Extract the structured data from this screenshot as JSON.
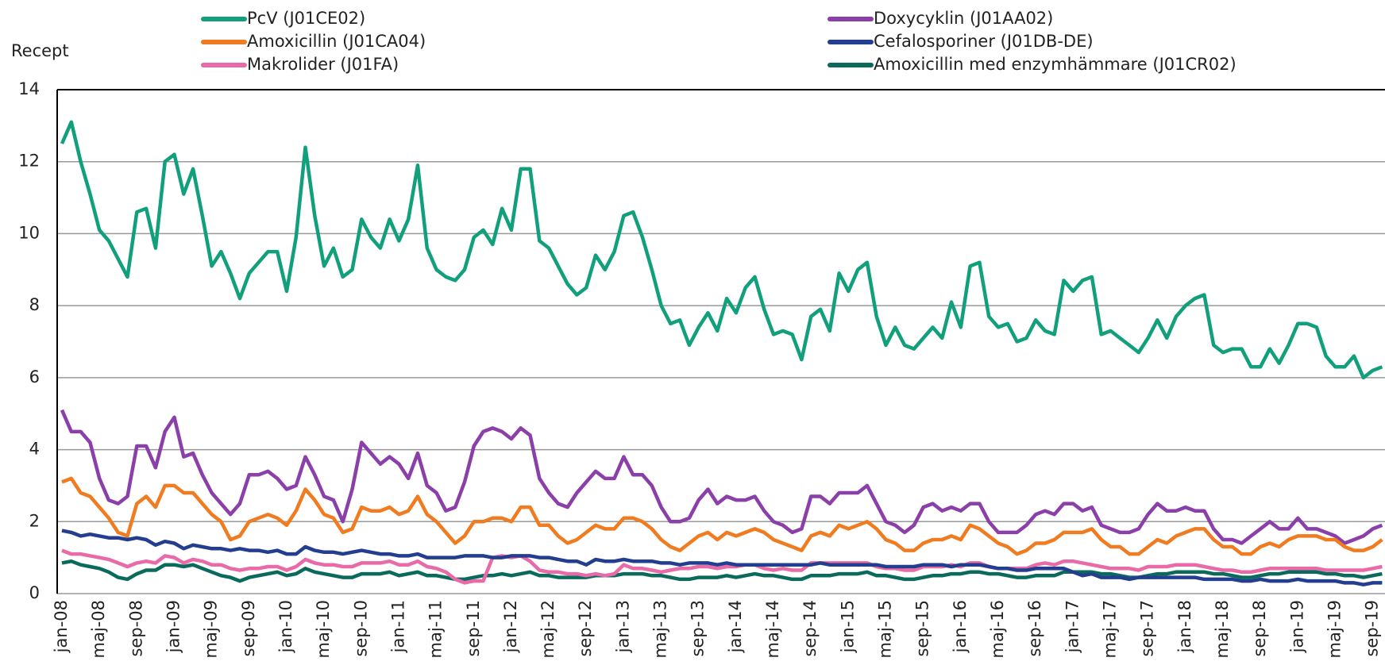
{
  "chart_data": {
    "type": "line",
    "y_label": "Recept",
    "categories": [
      "jan-08",
      null,
      null,
      null,
      "maj-08",
      null,
      null,
      null,
      "sep-08",
      null,
      null,
      null,
      "jan-09",
      null,
      null,
      null,
      "maj-09",
      null,
      null,
      null,
      "sep-09",
      null,
      null,
      null,
      "jan-10",
      null,
      null,
      null,
      "maj-10",
      null,
      null,
      null,
      "sep-10",
      null,
      null,
      null,
      "jan-11",
      null,
      null,
      null,
      "maj-11",
      null,
      null,
      null,
      "sep-11",
      null,
      null,
      null,
      "jan-12",
      null,
      null,
      null,
      "maj-12",
      null,
      null,
      null,
      "sep-12",
      null,
      null,
      null,
      "jan-13",
      null,
      null,
      null,
      "maj-13",
      null,
      null,
      null,
      "sep-13",
      null,
      null,
      null,
      "jan-14",
      null,
      null,
      null,
      "maj-14",
      null,
      null,
      null,
      "sep-14",
      null,
      null,
      null,
      "jan-15",
      null,
      null,
      null,
      "maj-15",
      null,
      null,
      null,
      "sep-15",
      null,
      null,
      null,
      "jan-16",
      null,
      null,
      null,
      "maj-16",
      null,
      null,
      null,
      "sep-16",
      null,
      null,
      null,
      "jan-17",
      null,
      null,
      null,
      "maj-17",
      null,
      null,
      null,
      "sep-17",
      null,
      null,
      null,
      "jan-18",
      null,
      null,
      null,
      "maj-18",
      null,
      null,
      null,
      "sep-18",
      null,
      null,
      null,
      "jan-19",
      null,
      null,
      null,
      "maj-19",
      null,
      null,
      null,
      "sep-19",
      null
    ],
    "series": [
      {
        "name": "PcV (J01CE02)",
        "color": "#12a07c",
        "values": [
          12.5,
          13.1,
          12.0,
          11.1,
          10.1,
          9.8,
          9.3,
          8.8,
          10.6,
          10.7,
          9.6,
          12.0,
          12.2,
          11.1,
          11.8,
          10.5,
          9.1,
          9.5,
          8.9,
          8.2,
          8.9,
          9.2,
          9.5,
          9.5,
          8.4,
          9.9,
          12.4,
          10.5,
          9.1,
          9.6,
          8.8,
          9.0,
          10.4,
          9.9,
          9.6,
          10.4,
          9.8,
          10.4,
          11.9,
          9.6,
          9.0,
          8.8,
          8.7,
          9.0,
          9.9,
          10.1,
          9.7,
          10.7,
          10.1,
          11.8,
          11.8,
          9.8,
          9.6,
          9.1,
          8.6,
          8.3,
          8.5,
          9.4,
          9.0,
          9.5,
          10.5,
          10.6,
          9.9,
          9.0,
          8.0,
          7.5,
          7.6,
          6.9,
          7.4,
          7.8,
          7.3,
          8.2,
          7.8,
          8.5,
          8.8,
          7.9,
          7.2,
          7.3,
          7.2,
          6.5,
          7.7,
          7.9,
          7.3,
          8.9,
          8.4,
          9.0,
          9.2,
          7.7,
          6.9,
          7.4,
          6.9,
          6.8,
          7.1,
          7.4,
          7.1,
          8.1,
          7.4,
          9.1,
          9.2,
          7.7,
          7.4,
          7.5,
          7.0,
          7.1,
          7.6,
          7.3,
          7.2,
          8.7,
          8.4,
          8.7,
          8.8,
          7.2,
          7.3,
          7.1,
          6.9,
          6.7,
          7.1,
          7.6,
          7.1,
          7.7,
          8.0,
          8.2,
          8.3,
          6.9,
          6.7,
          6.8,
          6.8,
          6.3,
          6.3,
          6.8,
          6.4,
          6.9,
          7.5,
          7.5,
          7.4,
          6.6,
          6.3,
          6.3,
          6.6,
          6.0,
          6.2,
          6.3
        ]
      },
      {
        "name": "Amoxicillin (J01CA04)",
        "color": "#f07c22",
        "values": [
          3.1,
          3.2,
          2.8,
          2.7,
          2.4,
          2.1,
          1.7,
          1.6,
          2.5,
          2.7,
          2.4,
          3.0,
          3.0,
          2.8,
          2.8,
          2.5,
          2.2,
          2.0,
          1.5,
          1.6,
          2.0,
          2.1,
          2.2,
          2.1,
          1.9,
          2.3,
          2.9,
          2.6,
          2.2,
          2.1,
          1.7,
          1.8,
          2.4,
          2.3,
          2.3,
          2.4,
          2.2,
          2.3,
          2.7,
          2.2,
          2.0,
          1.7,
          1.4,
          1.6,
          2.0,
          2.0,
          2.1,
          2.1,
          2.0,
          2.4,
          2.4,
          1.9,
          1.9,
          1.6,
          1.4,
          1.5,
          1.7,
          1.9,
          1.8,
          1.8,
          2.1,
          2.1,
          2.0,
          1.8,
          1.5,
          1.3,
          1.2,
          1.4,
          1.6,
          1.7,
          1.5,
          1.7,
          1.6,
          1.7,
          1.8,
          1.7,
          1.5,
          1.4,
          1.3,
          1.2,
          1.6,
          1.7,
          1.6,
          1.9,
          1.8,
          1.9,
          2.0,
          1.8,
          1.5,
          1.4,
          1.2,
          1.2,
          1.4,
          1.5,
          1.5,
          1.6,
          1.5,
          1.9,
          1.8,
          1.6,
          1.4,
          1.3,
          1.1,
          1.2,
          1.4,
          1.4,
          1.5,
          1.7,
          1.7,
          1.7,
          1.8,
          1.5,
          1.3,
          1.3,
          1.1,
          1.1,
          1.3,
          1.5,
          1.4,
          1.6,
          1.7,
          1.8,
          1.8,
          1.5,
          1.3,
          1.3,
          1.1,
          1.1,
          1.3,
          1.4,
          1.3,
          1.5,
          1.6,
          1.6,
          1.6,
          1.5,
          1.5,
          1.3,
          1.2,
          1.2,
          1.3,
          1.5
        ]
      },
      {
        "name": "Makrolider (J01FA)",
        "color": "#e86aa8",
        "values": [
          1.2,
          1.1,
          1.1,
          1.05,
          1.0,
          0.95,
          0.85,
          0.75,
          0.85,
          0.9,
          0.85,
          1.05,
          1.0,
          0.85,
          0.95,
          0.9,
          0.8,
          0.8,
          0.7,
          0.65,
          0.7,
          0.7,
          0.75,
          0.75,
          0.65,
          0.75,
          0.95,
          0.85,
          0.8,
          0.8,
          0.75,
          0.75,
          0.85,
          0.85,
          0.85,
          0.9,
          0.8,
          0.8,
          0.9,
          0.75,
          0.7,
          0.6,
          0.4,
          0.3,
          0.35,
          0.35,
          1.0,
          1.05,
          1.0,
          1.05,
          0.9,
          0.65,
          0.6,
          0.6,
          0.55,
          0.55,
          0.5,
          0.55,
          0.5,
          0.55,
          0.8,
          0.7,
          0.7,
          0.65,
          0.6,
          0.65,
          0.7,
          0.7,
          0.75,
          0.75,
          0.7,
          0.75,
          0.75,
          0.8,
          0.8,
          0.7,
          0.65,
          0.7,
          0.65,
          0.65,
          0.85,
          0.85,
          0.85,
          0.85,
          0.85,
          0.85,
          0.85,
          0.75,
          0.7,
          0.7,
          0.65,
          0.65,
          0.75,
          0.75,
          0.75,
          0.8,
          0.75,
          0.85,
          0.85,
          0.75,
          0.7,
          0.7,
          0.7,
          0.7,
          0.8,
          0.85,
          0.8,
          0.9,
          0.9,
          0.85,
          0.8,
          0.75,
          0.7,
          0.7,
          0.7,
          0.65,
          0.75,
          0.75,
          0.75,
          0.8,
          0.8,
          0.8,
          0.75,
          0.7,
          0.65,
          0.65,
          0.6,
          0.6,
          0.65,
          0.7,
          0.7,
          0.7,
          0.7,
          0.7,
          0.7,
          0.65,
          0.65,
          0.65,
          0.65,
          0.65,
          0.7,
          0.75
        ]
      },
      {
        "name": "Doxycyklin (J01AA02)",
        "color": "#8b3fa8",
        "values": [
          5.1,
          4.5,
          4.5,
          4.2,
          3.2,
          2.6,
          2.5,
          2.7,
          4.1,
          4.1,
          3.5,
          4.5,
          4.9,
          3.8,
          3.9,
          3.3,
          2.8,
          2.5,
          2.2,
          2.5,
          3.3,
          3.3,
          3.4,
          3.2,
          2.9,
          3.0,
          3.8,
          3.3,
          2.7,
          2.6,
          2.0,
          2.9,
          4.2,
          3.9,
          3.6,
          3.8,
          3.6,
          3.2,
          3.9,
          3.0,
          2.8,
          2.3,
          2.4,
          3.1,
          4.1,
          4.5,
          4.6,
          4.5,
          4.3,
          4.6,
          4.4,
          3.2,
          2.8,
          2.5,
          2.4,
          2.8,
          3.1,
          3.4,
          3.2,
          3.2,
          3.8,
          3.3,
          3.3,
          3.0,
          2.4,
          2.0,
          2.0,
          2.1,
          2.6,
          2.9,
          2.5,
          2.7,
          2.6,
          2.6,
          2.7,
          2.3,
          2.0,
          1.9,
          1.7,
          1.8,
          2.7,
          2.7,
          2.5,
          2.8,
          2.8,
          2.8,
          3.0,
          2.5,
          2.0,
          1.9,
          1.7,
          1.9,
          2.4,
          2.5,
          2.3,
          2.4,
          2.3,
          2.5,
          2.5,
          2.0,
          1.7,
          1.7,
          1.7,
          1.9,
          2.2,
          2.3,
          2.2,
          2.5,
          2.5,
          2.3,
          2.4,
          1.9,
          1.8,
          1.7,
          1.7,
          1.8,
          2.2,
          2.5,
          2.3,
          2.3,
          2.4,
          2.3,
          2.3,
          1.8,
          1.5,
          1.5,
          1.4,
          1.6,
          1.8,
          2.0,
          1.8,
          1.8,
          2.1,
          1.8,
          1.8,
          1.7,
          1.6,
          1.4,
          1.5,
          1.6,
          1.8,
          1.9
        ]
      },
      {
        "name": "Cefalosporiner (J01DB-DE)",
        "color": "#233e8f",
        "values": [
          1.75,
          1.7,
          1.6,
          1.65,
          1.6,
          1.55,
          1.55,
          1.5,
          1.55,
          1.5,
          1.35,
          1.45,
          1.4,
          1.25,
          1.35,
          1.3,
          1.25,
          1.25,
          1.2,
          1.25,
          1.2,
          1.2,
          1.15,
          1.2,
          1.1,
          1.1,
          1.3,
          1.2,
          1.15,
          1.15,
          1.1,
          1.15,
          1.2,
          1.15,
          1.1,
          1.1,
          1.05,
          1.05,
          1.1,
          1.0,
          1.0,
          1.0,
          1.0,
          1.05,
          1.05,
          1.05,
          1.0,
          1.0,
          1.05,
          1.05,
          1.05,
          1.0,
          1.0,
          0.95,
          0.9,
          0.9,
          0.8,
          0.95,
          0.9,
          0.9,
          0.95,
          0.9,
          0.9,
          0.9,
          0.85,
          0.85,
          0.8,
          0.85,
          0.85,
          0.85,
          0.8,
          0.85,
          0.8,
          0.8,
          0.8,
          0.8,
          0.8,
          0.8,
          0.8,
          0.8,
          0.8,
          0.85,
          0.8,
          0.8,
          0.8,
          0.8,
          0.8,
          0.8,
          0.75,
          0.75,
          0.75,
          0.75,
          0.8,
          0.8,
          0.8,
          0.75,
          0.8,
          0.8,
          0.8,
          0.75,
          0.7,
          0.7,
          0.65,
          0.65,
          0.7,
          0.7,
          0.7,
          0.7,
          0.6,
          0.5,
          0.55,
          0.45,
          0.45,
          0.45,
          0.4,
          0.45,
          0.45,
          0.45,
          0.45,
          0.45,
          0.45,
          0.45,
          0.4,
          0.4,
          0.4,
          0.4,
          0.35,
          0.35,
          0.4,
          0.35,
          0.35,
          0.35,
          0.4,
          0.35,
          0.35,
          0.35,
          0.35,
          0.3,
          0.3,
          0.25,
          0.3,
          0.3
        ]
      },
      {
        "name": "Amoxicillin med enzymhämmare (J01CR02)",
        "color": "#0a6b5c",
        "values": [
          0.85,
          0.9,
          0.8,
          0.75,
          0.7,
          0.6,
          0.45,
          0.4,
          0.55,
          0.65,
          0.65,
          0.8,
          0.8,
          0.75,
          0.8,
          0.7,
          0.6,
          0.5,
          0.45,
          0.35,
          0.45,
          0.5,
          0.55,
          0.6,
          0.5,
          0.55,
          0.7,
          0.6,
          0.55,
          0.5,
          0.45,
          0.45,
          0.55,
          0.55,
          0.55,
          0.6,
          0.5,
          0.55,
          0.6,
          0.5,
          0.5,
          0.45,
          0.4,
          0.4,
          0.45,
          0.5,
          0.5,
          0.55,
          0.5,
          0.55,
          0.6,
          0.5,
          0.5,
          0.45,
          0.45,
          0.45,
          0.45,
          0.5,
          0.5,
          0.5,
          0.55,
          0.55,
          0.55,
          0.5,
          0.5,
          0.45,
          0.4,
          0.4,
          0.45,
          0.45,
          0.45,
          0.5,
          0.45,
          0.5,
          0.55,
          0.5,
          0.5,
          0.45,
          0.4,
          0.4,
          0.5,
          0.5,
          0.5,
          0.55,
          0.55,
          0.55,
          0.6,
          0.5,
          0.5,
          0.45,
          0.4,
          0.4,
          0.45,
          0.5,
          0.5,
          0.55,
          0.55,
          0.6,
          0.6,
          0.55,
          0.55,
          0.5,
          0.45,
          0.45,
          0.5,
          0.5,
          0.5,
          0.6,
          0.6,
          0.6,
          0.6,
          0.55,
          0.55,
          0.5,
          0.45,
          0.45,
          0.5,
          0.55,
          0.55,
          0.6,
          0.6,
          0.6,
          0.6,
          0.55,
          0.55,
          0.5,
          0.45,
          0.45,
          0.5,
          0.55,
          0.55,
          0.6,
          0.6,
          0.6,
          0.6,
          0.55,
          0.55,
          0.5,
          0.5,
          0.45,
          0.5,
          0.55
        ]
      }
    ],
    "ylim": [
      0,
      14
    ],
    "yticks": [
      0,
      2,
      4,
      6,
      8,
      10,
      12,
      14
    ],
    "grid": true
  }
}
